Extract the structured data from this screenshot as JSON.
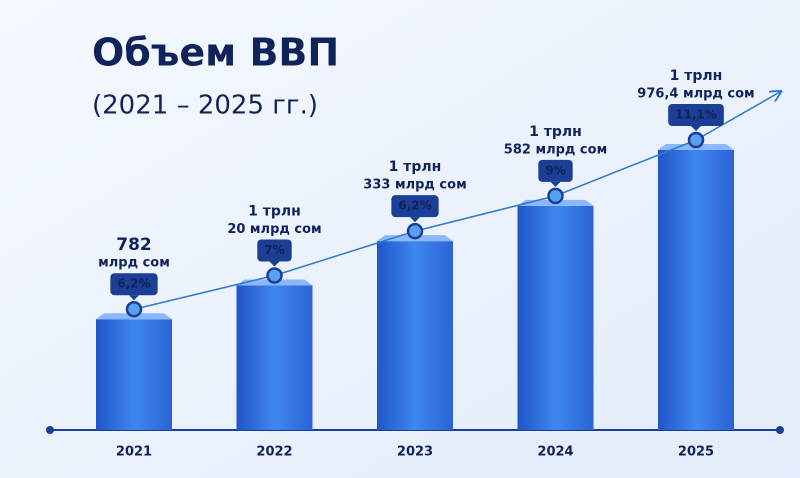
{
  "chart_data": {
    "type": "bar",
    "title": "Объем ВВП",
    "subtitle": "(2021 – 2025 гг.)",
    "categories": [
      "2021",
      "2022",
      "2023",
      "2024",
      "2025"
    ],
    "values": [
      782,
      1020,
      1333,
      1582,
      1976.4
    ],
    "value_labels": [
      [
        "782",
        "млрд сом"
      ],
      [
        "1 трлн",
        "20 млрд сом"
      ],
      [
        "1 трлн",
        "333 млрд сом"
      ],
      [
        "1 трлн",
        "582 млрд сом"
      ],
      [
        "1 трлн",
        "976,4 млрд сом"
      ]
    ],
    "color": "#2f6fe0",
    "growth": {
      "values": [
        6.2,
        7,
        6.2,
        9,
        11.1
      ],
      "value_labels": [
        "6,2%",
        "7%",
        "6,2%",
        "9%",
        "11,1%"
      ],
      "color": "#1b3f94"
    }
  }
}
